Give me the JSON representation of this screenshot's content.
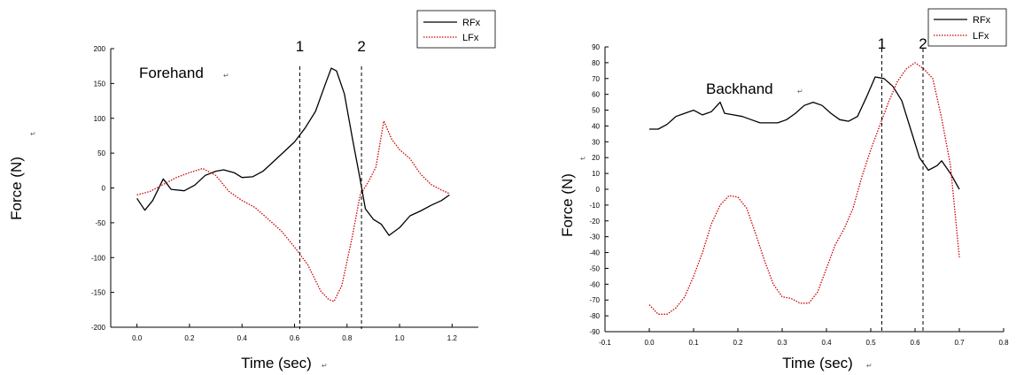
{
  "chart_data": [
    {
      "type": "line",
      "title": "",
      "annotation": "Forehand",
      "xlabel": "Time (sec)",
      "ylabel": "Force (N)",
      "xlim": [
        -0.1,
        1.3
      ],
      "ylim": [
        -200,
        200
      ],
      "xticks": [
        0.0,
        0.2,
        0.4,
        0.6,
        0.8,
        1.0,
        1.2
      ],
      "xtick_labels": [
        "0.0",
        "0.2",
        "0.4",
        "0.6",
        "0.8",
        "1.0",
        "1.2"
      ],
      "yticks": [
        -200,
        -150,
        -100,
        -50,
        0,
        50,
        100,
        150,
        200
      ],
      "ytick_labels": [
        "-200",
        "-150",
        "-100",
        "-50",
        "0",
        "50",
        "100",
        "150",
        "200"
      ],
      "markers": [
        {
          "label": "1",
          "x": 0.62
        },
        {
          "label": "2",
          "x": 0.855
        }
      ],
      "legend": "top-right",
      "series": [
        {
          "name": "RFx",
          "color": "#000000",
          "style": "solid",
          "x": [
            0.0,
            0.03,
            0.06,
            0.1,
            0.13,
            0.18,
            0.22,
            0.26,
            0.3,
            0.33,
            0.37,
            0.4,
            0.44,
            0.48,
            0.52,
            0.56,
            0.6,
            0.64,
            0.68,
            0.72,
            0.74,
            0.76,
            0.79,
            0.82,
            0.85,
            0.87,
            0.9,
            0.93,
            0.96,
            1.0,
            1.04,
            1.08,
            1.12,
            1.16,
            1.19
          ],
          "y": [
            -15,
            -32,
            -18,
            13,
            -2,
            -4,
            4,
            18,
            24,
            26,
            22,
            15,
            16,
            24,
            38,
            52,
            66,
            86,
            110,
            152,
            172,
            168,
            135,
            72,
            12,
            -30,
            -45,
            -52,
            -68,
            -57,
            -40,
            -33,
            -25,
            -18,
            -10
          ]
        },
        {
          "name": "LFx",
          "color": "#cc0000",
          "style": "dotted",
          "x": [
            0.0,
            0.05,
            0.1,
            0.15,
            0.2,
            0.25,
            0.3,
            0.35,
            0.4,
            0.45,
            0.5,
            0.55,
            0.6,
            0.65,
            0.7,
            0.73,
            0.75,
            0.78,
            0.82,
            0.85,
            0.88,
            0.91,
            0.94,
            0.97,
            1.0,
            1.04,
            1.08,
            1.12,
            1.16,
            1.19
          ],
          "y": [
            -10,
            -5,
            5,
            15,
            22,
            28,
            18,
            -5,
            -18,
            -28,
            -45,
            -62,
            -85,
            -110,
            -148,
            -160,
            -163,
            -140,
            -70,
            -10,
            8,
            30,
            96,
            70,
            55,
            42,
            20,
            5,
            -3,
            -8
          ]
        }
      ]
    },
    {
      "type": "line",
      "title": "",
      "annotation": "Backhand",
      "xlabel": "Time (sec)",
      "ylabel": "Force (N)",
      "xlim": [
        -0.1,
        0.8
      ],
      "ylim": [
        -90,
        90
      ],
      "xticks": [
        -0.1,
        0.0,
        0.1,
        0.2,
        0.3,
        0.4,
        0.5,
        0.6,
        0.7,
        0.8
      ],
      "xtick_labels": [
        "-0.1",
        "0.0",
        "0.1",
        "0.2",
        "0.3",
        "0.4",
        "0.5",
        "0.6",
        "0.7",
        "0.8"
      ],
      "yticks": [
        -90,
        -80,
        -70,
        -60,
        -50,
        -40,
        -30,
        -20,
        -10,
        0,
        10,
        20,
        30,
        40,
        50,
        60,
        70,
        80,
        90
      ],
      "ytick_labels": [
        "-90",
        "-80",
        "-70",
        "-60",
        "-50",
        "-40",
        "-30",
        "-20",
        "-10",
        "0",
        "10",
        "20",
        "30",
        "40",
        "50",
        "60",
        "70",
        "80",
        "90"
      ],
      "markers": [
        {
          "label": "1",
          "x": 0.525
        },
        {
          "label": "2",
          "x": 0.618
        }
      ],
      "legend": "top-right",
      "series": [
        {
          "name": "RFx",
          "color": "#000000",
          "style": "solid",
          "x": [
            0.0,
            0.02,
            0.04,
            0.06,
            0.08,
            0.1,
            0.12,
            0.14,
            0.16,
            0.17,
            0.19,
            0.21,
            0.23,
            0.25,
            0.27,
            0.29,
            0.31,
            0.33,
            0.35,
            0.37,
            0.39,
            0.41,
            0.43,
            0.45,
            0.47,
            0.49,
            0.51,
            0.53,
            0.55,
            0.57,
            0.59,
            0.61,
            0.63,
            0.65,
            0.66,
            0.68,
            0.7
          ],
          "y": [
            38,
            38,
            41,
            46,
            48,
            50,
            47,
            49,
            55,
            48,
            47,
            46,
            44,
            42,
            42,
            42,
            44,
            48,
            53,
            55,
            53,
            48,
            44,
            43,
            46,
            58,
            71,
            70,
            65,
            56,
            38,
            20,
            12,
            15,
            18,
            10,
            0
          ]
        },
        {
          "name": "LFx",
          "color": "#cc0000",
          "style": "dotted",
          "x": [
            0.0,
            0.02,
            0.04,
            0.06,
            0.08,
            0.1,
            0.12,
            0.14,
            0.16,
            0.18,
            0.2,
            0.22,
            0.24,
            0.26,
            0.28,
            0.3,
            0.32,
            0.34,
            0.36,
            0.38,
            0.4,
            0.42,
            0.44,
            0.46,
            0.48,
            0.5,
            0.52,
            0.54,
            0.56,
            0.58,
            0.6,
            0.62,
            0.64,
            0.66,
            0.68,
            0.7
          ],
          "y": [
            -73,
            -79,
            -79,
            -75,
            -68,
            -55,
            -40,
            -22,
            -10,
            -4,
            -5,
            -12,
            -28,
            -45,
            -60,
            -68,
            -69,
            -72,
            -72,
            -65,
            -50,
            -35,
            -25,
            -12,
            8,
            25,
            40,
            55,
            68,
            76,
            80,
            76,
            70,
            45,
            15,
            -43
          ]
        }
      ]
    }
  ]
}
